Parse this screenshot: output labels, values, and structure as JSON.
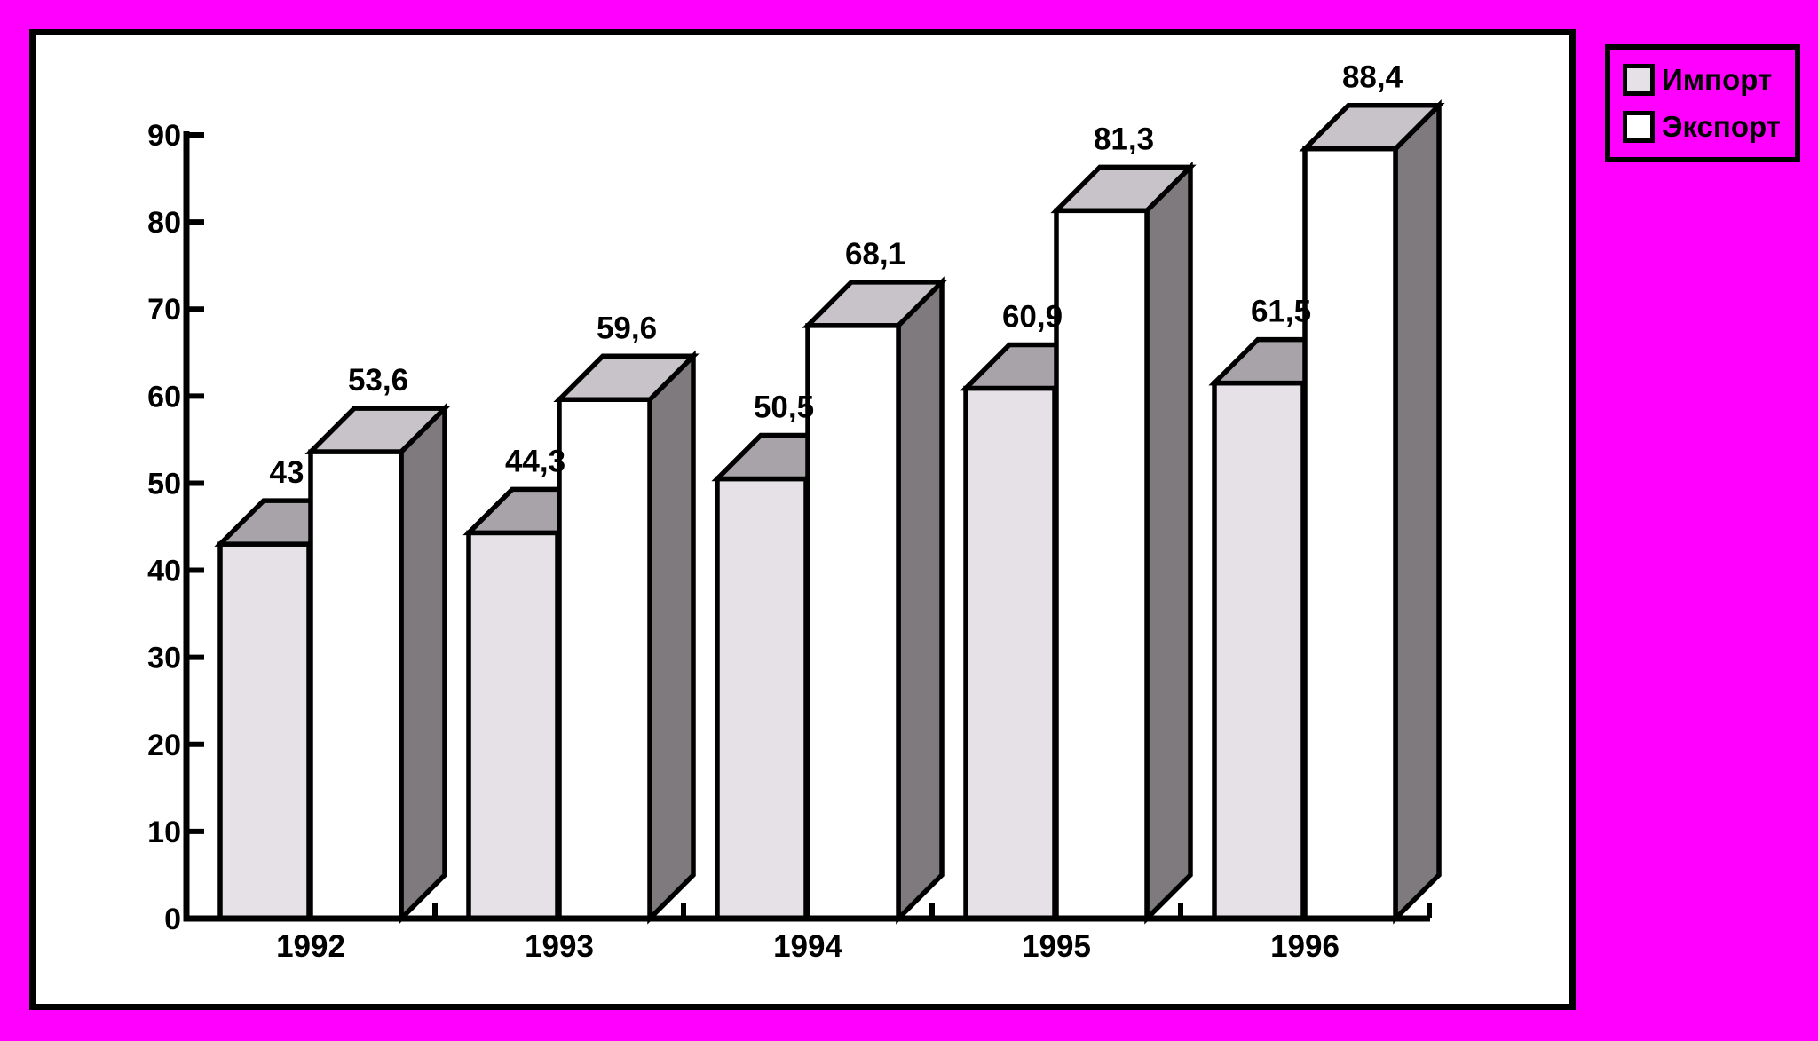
{
  "chart_data": {
    "type": "bar",
    "style": "3d-clustered",
    "categories": [
      "1992",
      "1993",
      "1994",
      "1995",
      "1996"
    ],
    "series": [
      {
        "name": "Импорт",
        "values": [
          43,
          44.3,
          50.5,
          60.9,
          61.5
        ],
        "value_labels": [
          "43",
          "44,3",
          "50,5",
          "60,9",
          "61,5"
        ],
        "front_color": "#e5e1e6",
        "top_color": "#a7a3a8",
        "side_color": "#8b878b"
      },
      {
        "name": "Экспорт",
        "values": [
          53.6,
          59.6,
          68.1,
          81.3,
          88.4
        ],
        "value_labels": [
          "53,6",
          "59,6",
          "68,1",
          "81,3",
          "88,4"
        ],
        "front_color": "#ffffff",
        "top_color": "#c7c3c8",
        "side_color": "#7e7a7e"
      }
    ],
    "title": "",
    "xlabel": "",
    "ylabel": "",
    "ylim": [
      0,
      90
    ],
    "ytick_step": 10,
    "yticks": [
      "0",
      "10",
      "20",
      "30",
      "40",
      "50",
      "60",
      "70",
      "80",
      "90"
    ],
    "grid": false,
    "legend_position": "outside-top-right",
    "decimal_separator": ","
  },
  "legend": {
    "items": [
      {
        "label": "Импорт",
        "swatch_color": "#e5e1e6"
      },
      {
        "label": "Экспорт",
        "swatch_color": "#ffffff"
      }
    ]
  },
  "colors": {
    "page_background": "#ff00ff",
    "panel_background": "#ffffff",
    "outline": "#000000",
    "text": "#000000"
  }
}
